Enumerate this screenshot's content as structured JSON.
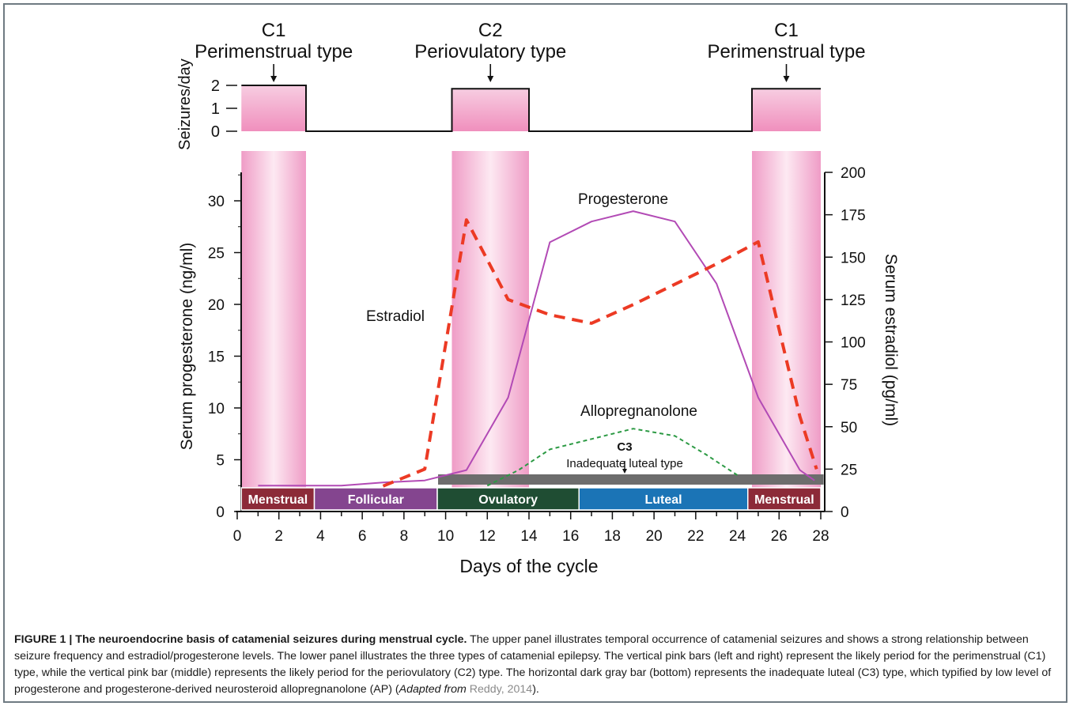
{
  "chart_data": {
    "type": "line",
    "x_axis": {
      "label": "Days of the cycle",
      "range": [
        0,
        28
      ],
      "ticks": [
        0,
        2,
        4,
        6,
        8,
        10,
        12,
        14,
        16,
        18,
        20,
        22,
        24,
        26,
        28
      ]
    },
    "y_left": {
      "label": "Serum progesterone (ng/ml)",
      "range": [
        0,
        33
      ],
      "ticks": [
        0,
        5,
        10,
        15,
        20,
        25,
        30
      ]
    },
    "y_right": {
      "label": "Serum estradiol (pg/ml)",
      "range": [
        0,
        200
      ],
      "ticks": [
        0,
        25,
        50,
        75,
        100,
        125,
        150,
        175,
        200
      ]
    },
    "seizure_panel": {
      "ylabel": "Seizures/day",
      "ticks": [
        0,
        1,
        2
      ],
      "series": {
        "x": [
          0.2,
          3.3,
          3.3,
          10.3,
          10.3,
          14.0,
          14.0,
          24.7,
          24.7,
          28.0
        ],
        "y": [
          2.0,
          2.0,
          0.0,
          0.0,
          1.85,
          1.85,
          0.0,
          0.0,
          1.85,
          1.85
        ]
      }
    },
    "shaded_periods": [
      {
        "label_top": "C1",
        "label_bottom": "Perimenstrual type",
        "start": 0.2,
        "end": 3.3
      },
      {
        "label_top": "C2",
        "label_bottom": "Periovulatory type",
        "start": 10.3,
        "end": 14.0
      },
      {
        "label_top": "C1",
        "label_bottom": "Perimenstrual type",
        "start": 24.7,
        "end": 28.0
      }
    ],
    "c3": {
      "label_top": "C3",
      "label_bottom": "Inadequate luteal type",
      "start": 9.6,
      "end": 28.1
    },
    "phases": [
      {
        "label": "Menstrual",
        "start": 0.2,
        "end": 3.7,
        "color": "#8c2a38"
      },
      {
        "label": "Follicular",
        "start": 3.7,
        "end": 9.6,
        "color": "#84458f"
      },
      {
        "label": "Ovulatory",
        "start": 9.6,
        "end": 16.4,
        "color": "#1f4d33"
      },
      {
        "label": "Luteal",
        "start": 16.4,
        "end": 24.5,
        "color": "#1b74b6"
      },
      {
        "label": "Menstrual",
        "start": 24.5,
        "end": 28.0,
        "color": "#8c2a38"
      }
    ],
    "series": [
      {
        "name": "Progesterone",
        "axis": "left",
        "color": "#b24ab5",
        "style": "solid",
        "x": [
          1,
          3,
          5,
          7,
          9,
          11,
          13,
          15,
          17,
          19,
          21,
          23,
          25,
          27,
          27.7
        ],
        "y": [
          2.5,
          2.5,
          2.5,
          2.8,
          3.0,
          4.0,
          11.0,
          26.0,
          28.0,
          29.0,
          28.0,
          22.0,
          11.0,
          4.0,
          3.0
        ]
      },
      {
        "name": "Estradiol",
        "axis": "right",
        "color": "#ec3a24",
        "style": "dashed",
        "x": [
          7,
          9,
          11,
          13,
          15,
          17,
          19,
          21,
          23,
          25,
          27,
          27.8
        ],
        "y": [
          15,
          25,
          172,
          125,
          116,
          111,
          122,
          134,
          146,
          159,
          56,
          25
        ]
      },
      {
        "name": "Allopregnanolone",
        "axis": "left",
        "color": "#2c9a44",
        "style": "dotted",
        "x": [
          12,
          13.5,
          15,
          17,
          19,
          21,
          22.5,
          24
        ],
        "y": [
          2.5,
          4.0,
          6.0,
          7.0,
          8.0,
          7.3,
          5.5,
          3.5
        ]
      }
    ]
  },
  "figure": {
    "caption_lead": "FIGURE 1 | The neuroendocrine basis of catamenial seizures during menstrual cycle.",
    "caption_body": " The upper panel illustrates temporal occurrence of catamenial seizures and shows a strong relationship between seizure frequency and estradiol/progesterone levels. The lower panel illustrates the three types of catamenial epilepsy. The vertical pink bars (left and right) represent the likely period for the perimenstrual (C1) type, while the vertical pink bar (middle) represents the likely period for the periovulatory (C2) type. The horizontal dark gray bar (bottom) represents the inadequate luteal (C3) type, which typified by low level of progesterone and progesterone-derived neurosteroid allopregnanolone (AP) (",
    "caption_adapted": "Adapted from",
    "caption_cite": "Reddy, 2014",
    "caption_end": ")."
  }
}
